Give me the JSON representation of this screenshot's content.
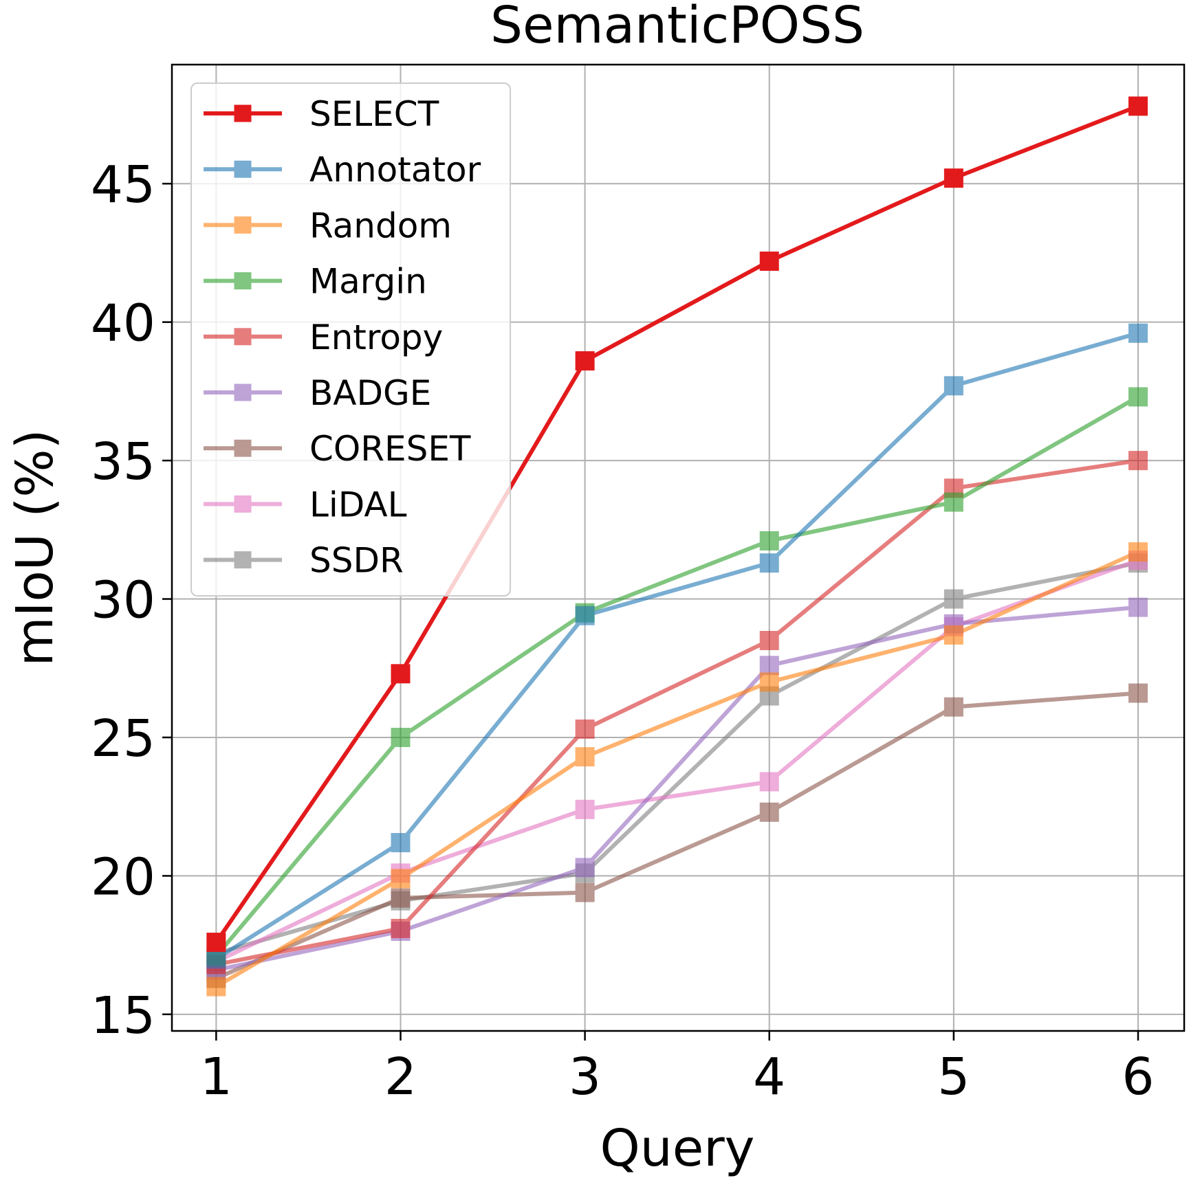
{
  "chart_data": {
    "type": "line",
    "title": "SemanticPOSS",
    "xlabel": "Query",
    "ylabel": "mIoU (%)",
    "x": [
      1,
      2,
      3,
      4,
      5,
      6
    ],
    "xticks": [
      1,
      2,
      3,
      4,
      5,
      6
    ],
    "yticks": [
      15,
      20,
      25,
      30,
      35,
      40,
      45
    ],
    "xlim": [
      0.76,
      6.25
    ],
    "ylim": [
      14.4,
      49.3
    ],
    "grid": true,
    "legend_position": "top-left",
    "marker": "square",
    "series": [
      {
        "name": "SELECT",
        "color": "#e31a1c",
        "opacity": 1.0,
        "values": [
          17.6,
          27.3,
          38.6,
          42.2,
          45.2,
          47.8
        ]
      },
      {
        "name": "Annotator",
        "color": "#1f77b4",
        "opacity": 0.6,
        "values": [
          17.0,
          21.2,
          29.4,
          31.3,
          37.7,
          39.6
        ]
      },
      {
        "name": "Random",
        "color": "#ff7f0e",
        "opacity": 0.6,
        "values": [
          16.0,
          19.9,
          24.3,
          27.0,
          28.7,
          31.7
        ]
      },
      {
        "name": "Margin",
        "color": "#2ca02c",
        "opacity": 0.6,
        "values": [
          17.1,
          25.0,
          29.5,
          32.1,
          33.5,
          37.3
        ]
      },
      {
        "name": "Entropy",
        "color": "#d62728",
        "opacity": 0.6,
        "values": [
          16.8,
          18.1,
          25.3,
          28.5,
          34.0,
          35.0
        ]
      },
      {
        "name": "BADGE",
        "color": "#9467bd",
        "opacity": 0.6,
        "values": [
          16.6,
          18.0,
          20.3,
          27.6,
          29.1,
          29.7
        ]
      },
      {
        "name": "CORESET",
        "color": "#8c564b",
        "opacity": 0.6,
        "values": [
          16.3,
          19.2,
          19.4,
          22.3,
          26.1,
          26.6
        ]
      },
      {
        "name": "LiDAL",
        "color": "#e377c2",
        "opacity": 0.6,
        "values": [
          16.9,
          20.1,
          22.4,
          23.4,
          29.0,
          31.4
        ]
      },
      {
        "name": "SSDR",
        "color": "#7f7f7f",
        "opacity": 0.6,
        "values": [
          17.2,
          19.1,
          20.1,
          26.5,
          30.0,
          31.3
        ]
      }
    ]
  }
}
